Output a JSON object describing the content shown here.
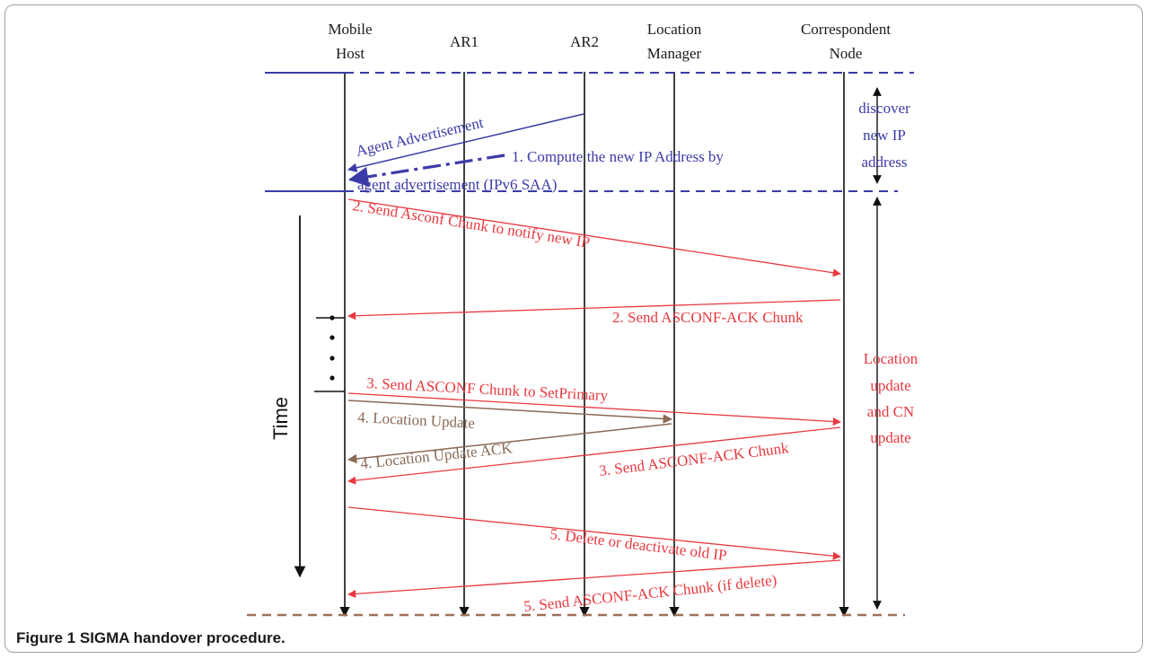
{
  "entities": [
    {
      "line1": "Mobile",
      "line2": "Host"
    },
    {
      "line1": "AR1",
      "line2": ""
    },
    {
      "line1": "AR2",
      "line2": ""
    },
    {
      "line1": "Location",
      "line2": "Manager"
    },
    {
      "line1": "Correspondent",
      "line2": "Node"
    }
  ],
  "phases": {
    "discover": [
      "discover",
      "new IP",
      "address"
    ],
    "update": [
      "Location",
      "update",
      "and CN",
      "update"
    ]
  },
  "time_label": "Time",
  "messages": {
    "agent_advertisement": "Agent Advertisement",
    "step1_line1": "1. Compute the new IP Address by",
    "step1_line2": "agent advertisement (IPv6 SAA)",
    "step2_send": "2. Send Asconf Chunk to notify new IP",
    "step2_ack": "2. Send ASCONF-ACK Chunk",
    "step3_send": "3. Send ASCONF Chunk to SetPrimary",
    "step4_update": "4. Location Update",
    "step4_ack": "4. Location Update ACK",
    "step3_ack": "3. Send ASCONF-ACK Chunk",
    "step5_delete": "5. Delete or deactivate old IP",
    "step5_ack": "5. Send ASCONF-ACK Chunk (if delete)"
  },
  "caption": {
    "label": "Figure 1",
    "text": "SIGMA handover procedure."
  },
  "colors": {
    "blue": "#3b3ba8",
    "red": "#e8393f",
    "brown": "#8a6a55",
    "black": "#111111",
    "dash_brown": "#a0705a"
  }
}
